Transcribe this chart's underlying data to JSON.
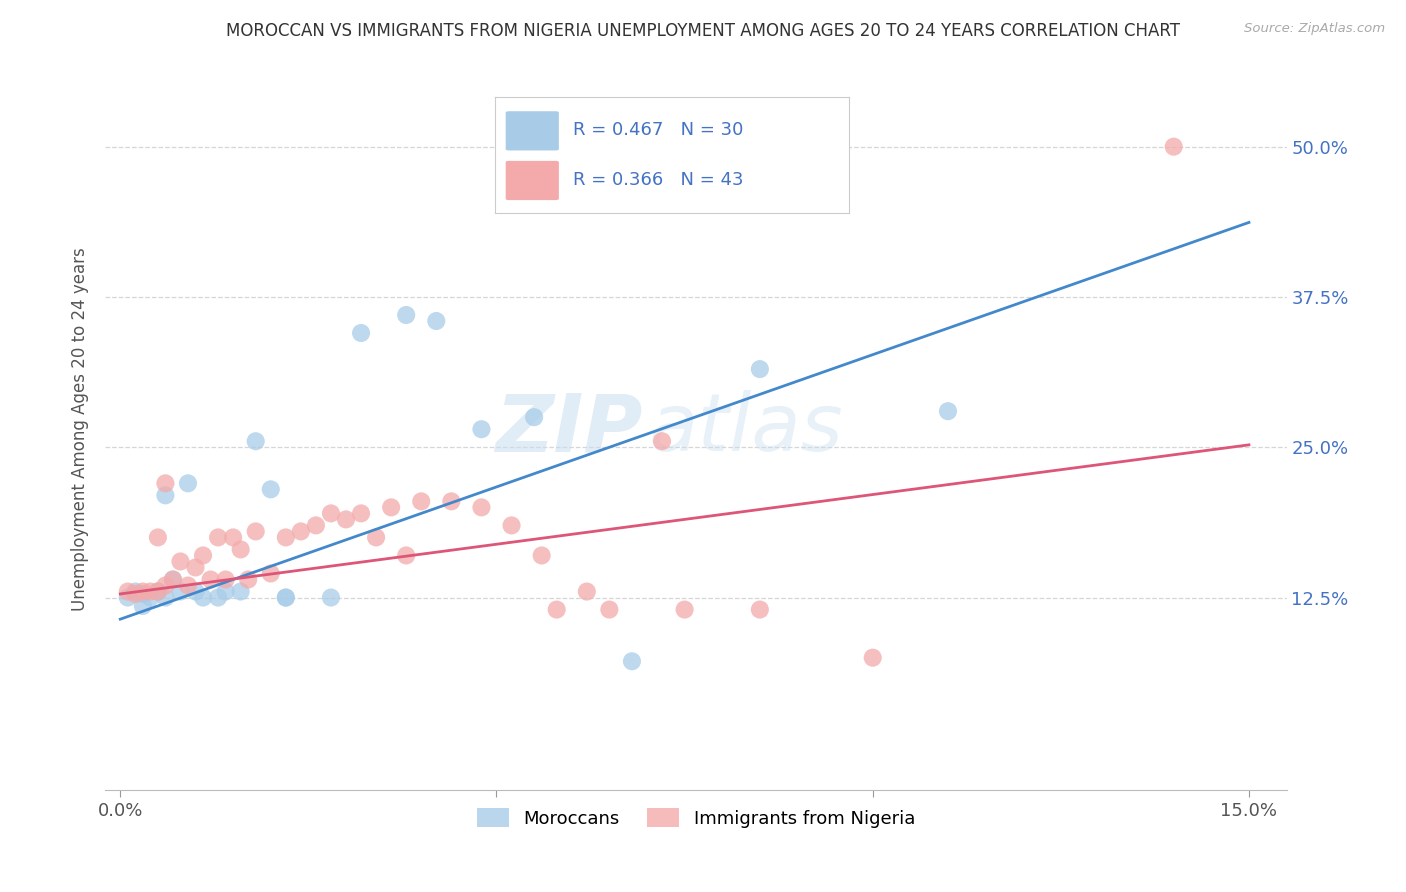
{
  "title": "MOROCCAN VS IMMIGRANTS FROM NIGERIA UNEMPLOYMENT AMONG AGES 20 TO 24 YEARS CORRELATION CHART",
  "source": "Source: ZipAtlas.com",
  "ylabel_label": "Unemployment Among Ages 20 to 24 years",
  "legend_labels": [
    "Moroccans",
    "Immigrants from Nigeria"
  ],
  "blue_R": "R = 0.467",
  "blue_N": "N = 30",
  "pink_R": "R = 0.366",
  "pink_N": "N = 43",
  "blue_color": "#a8cce8",
  "pink_color": "#f4aaaa",
  "blue_line_color": "#4488cc",
  "pink_line_color": "#dd5577",
  "background_color": "#ffffff",
  "watermark_zip": "ZIP",
  "watermark_atlas": "atlas",
  "blue_points_x": [
    0.001,
    0.002,
    0.003,
    0.003,
    0.004,
    0.005,
    0.005,
    0.006,
    0.006,
    0.007,
    0.008,
    0.009,
    0.01,
    0.011,
    0.013,
    0.014,
    0.016,
    0.018,
    0.02,
    0.022,
    0.022,
    0.028,
    0.032,
    0.038,
    0.042,
    0.048,
    0.055,
    0.068,
    0.085,
    0.11
  ],
  "blue_points_y": [
    0.125,
    0.13,
    0.118,
    0.128,
    0.125,
    0.13,
    0.13,
    0.125,
    0.21,
    0.14,
    0.13,
    0.22,
    0.13,
    0.125,
    0.125,
    0.13,
    0.13,
    0.255,
    0.215,
    0.125,
    0.125,
    0.125,
    0.345,
    0.36,
    0.355,
    0.265,
    0.275,
    0.072,
    0.315,
    0.28
  ],
  "pink_points_x": [
    0.001,
    0.002,
    0.003,
    0.004,
    0.005,
    0.005,
    0.006,
    0.006,
    0.007,
    0.008,
    0.009,
    0.01,
    0.011,
    0.012,
    0.013,
    0.014,
    0.015,
    0.016,
    0.017,
    0.018,
    0.02,
    0.022,
    0.024,
    0.026,
    0.028,
    0.03,
    0.032,
    0.034,
    0.036,
    0.038,
    0.04,
    0.044,
    0.048,
    0.052,
    0.056,
    0.058,
    0.062,
    0.065,
    0.072,
    0.075,
    0.085,
    0.1,
    0.14
  ],
  "pink_points_y": [
    0.13,
    0.128,
    0.13,
    0.13,
    0.13,
    0.175,
    0.135,
    0.22,
    0.14,
    0.155,
    0.135,
    0.15,
    0.16,
    0.14,
    0.175,
    0.14,
    0.175,
    0.165,
    0.14,
    0.18,
    0.145,
    0.175,
    0.18,
    0.185,
    0.195,
    0.19,
    0.195,
    0.175,
    0.2,
    0.16,
    0.205,
    0.205,
    0.2,
    0.185,
    0.16,
    0.115,
    0.13,
    0.115,
    0.255,
    0.115,
    0.115,
    0.075,
    0.5
  ],
  "blue_line_x": [
    0.0,
    0.15
  ],
  "blue_line_y": [
    0.107,
    0.437
  ],
  "pink_line_x": [
    0.0,
    0.15
  ],
  "pink_line_y": [
    0.128,
    0.252
  ],
  "xlim": [
    -0.002,
    0.155
  ],
  "ylim": [
    -0.035,
    0.565
  ],
  "xtick_positions": [
    0.0,
    0.05,
    0.1,
    0.15
  ],
  "xtick_labels": [
    "0.0%",
    "",
    "",
    "15.0%"
  ],
  "ytick_positions": [
    0.125,
    0.25,
    0.375,
    0.5
  ],
  "ytick_labels": [
    "12.5%",
    "25.0%",
    "37.5%",
    "50.0%"
  ],
  "tick_color": "#4472c4",
  "grid_color": "#cccccc"
}
